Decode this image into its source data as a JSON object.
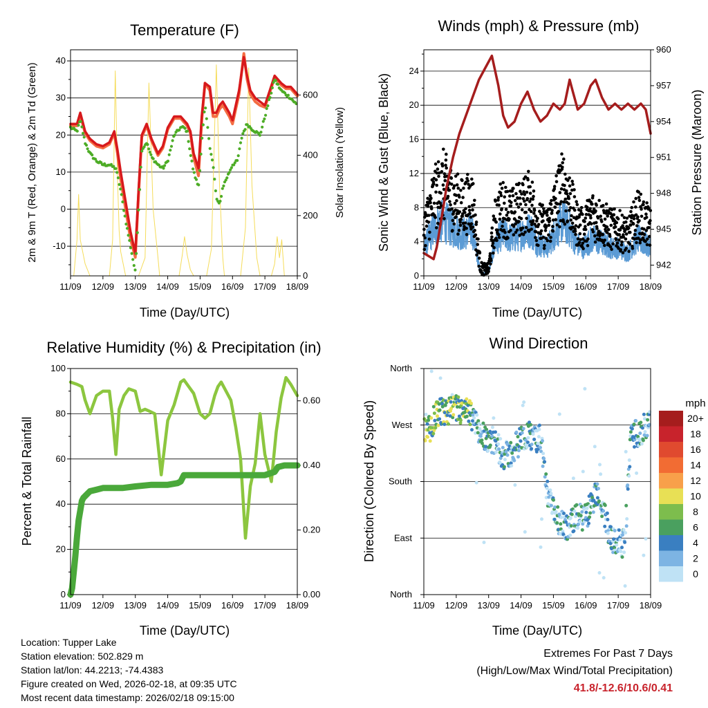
{
  "chart_data": [
    {
      "id": "temperature",
      "type": "line",
      "title": "Temperature (F)",
      "xlabel": "Time (Day/UTC)",
      "ylabel": "2m & 9m T (Red, Orange) & 2m Td (Green)",
      "y2label": "Solar Insolation (Yellow)",
      "x_ticks": [
        "11/09",
        "12/09",
        "13/09",
        "14/09",
        "15/09",
        "16/09",
        "17/09",
        "18/09"
      ],
      "xlim": [
        0,
        7
      ],
      "ylim": [
        -18,
        43
      ],
      "y_ticks": [
        -10,
        0,
        10,
        20,
        30,
        40
      ],
      "y2lim": [
        0,
        750
      ],
      "y2_ticks": [
        0,
        200,
        400,
        600
      ],
      "grid": true,
      "series": [
        {
          "name": "2m T",
          "color": "#d7191c",
          "x": [
            0,
            0.2,
            0.3,
            0.45,
            0.6,
            0.8,
            1,
            1.2,
            1.35,
            1.45,
            1.55,
            1.7,
            1.85,
            2,
            2.1,
            2.2,
            2.35,
            2.5,
            2.7,
            2.85,
            3,
            3.2,
            3.4,
            3.5,
            3.6,
            3.7,
            3.8,
            3.95,
            4.05,
            4.15,
            4.3,
            4.4,
            4.5,
            4.6,
            4.7,
            4.9,
            5,
            5.2,
            5.35,
            5.45,
            5.55,
            5.7,
            5.85,
            6,
            6.15,
            6.3,
            6.5,
            6.65,
            6.8,
            7
          ],
          "y": [
            23,
            23,
            26,
            21,
            19,
            17.5,
            17,
            18,
            21,
            16,
            10,
            2,
            -6,
            -12,
            5,
            20,
            23,
            19,
            15,
            17,
            22,
            25,
            25,
            24,
            23,
            21,
            15,
            11,
            25,
            34,
            33,
            26,
            26,
            28,
            29,
            26,
            24,
            32,
            41,
            36,
            32,
            30,
            29,
            28,
            32,
            36,
            34,
            33,
            33,
            31
          ]
        },
        {
          "name": "9m T",
          "color": "#f46d43",
          "x": [
            0,
            0.2,
            0.3,
            0.45,
            0.6,
            0.8,
            1,
            1.2,
            1.35,
            1.45,
            1.55,
            1.7,
            1.85,
            2,
            2.1,
            2.2,
            2.35,
            2.5,
            2.7,
            2.85,
            3,
            3.2,
            3.4,
            3.5,
            3.6,
            3.7,
            3.8,
            3.95,
            4.05,
            4.15,
            4.3,
            4.4,
            4.5,
            4.6,
            4.7,
            4.9,
            5,
            5.2,
            5.35,
            5.45,
            5.55,
            5.7,
            5.85,
            6,
            6.15,
            6.3,
            6.5,
            6.65,
            6.8,
            7
          ],
          "y": [
            22.5,
            22.5,
            25.5,
            20.5,
            18.5,
            17,
            16.5,
            17.5,
            20.5,
            15,
            8,
            0,
            -8,
            -13,
            4,
            19.5,
            22.5,
            18.5,
            14.5,
            16.5,
            21.5,
            24.5,
            24.5,
            23.5,
            22.5,
            20.5,
            14,
            9,
            24,
            34,
            32,
            25,
            25,
            27,
            28,
            25,
            23,
            31,
            42,
            35,
            31,
            29,
            28,
            27.5,
            31.5,
            35.5,
            33.5,
            32.5,
            32.5,
            30.5
          ]
        },
        {
          "name": "2m Td",
          "color": "#4dac26",
          "x": [
            0,
            0.2,
            0.3,
            0.45,
            0.6,
            0.8,
            1,
            1.2,
            1.4,
            1.55,
            1.7,
            1.85,
            2,
            2.1,
            2.2,
            2.35,
            2.5,
            2.7,
            2.85,
            3,
            3.2,
            3.4,
            3.5,
            3.6,
            3.7,
            3.8,
            3.95,
            4.05,
            4.15,
            4.3,
            4.4,
            4.5,
            4.6,
            4.7,
            4.9,
            5,
            5.15,
            5.3,
            5.45,
            5.55,
            5.7,
            5.85,
            6,
            6.15,
            6.3,
            6.5,
            6.65,
            6.8,
            7
          ],
          "y": [
            22,
            21,
            24,
            18,
            15,
            13,
            12,
            12,
            11,
            5,
            -3,
            -10,
            -17,
            0,
            16,
            18,
            14,
            12,
            11,
            13,
            20,
            22,
            22,
            21,
            15,
            10,
            6,
            18,
            28,
            17,
            12,
            3,
            1,
            6,
            10,
            12,
            13,
            20,
            23,
            22,
            21,
            20,
            25,
            30,
            35,
            32,
            31,
            30,
            28
          ]
        },
        {
          "name": "Solar Insolation",
          "color": "#f5dc5a",
          "axis": "y2",
          "x": [
            0,
            0.1,
            0.2,
            0.25,
            0.3,
            0.45,
            0.6,
            1.2,
            1.3,
            1.38,
            1.45,
            1.5,
            1.55,
            1.7,
            2.1,
            2.3,
            2.42,
            2.55,
            2.7,
            2.75,
            2.8,
            3.35,
            3.45,
            3.52,
            3.6,
            3.7,
            3.8,
            4.2,
            4.35,
            4.5,
            4.6,
            4.7,
            4.75,
            4.8,
            5.25,
            5.4,
            5.5,
            5.6,
            5.75,
            5.85,
            6.2,
            6.3,
            6.38,
            6.45,
            6.52,
            6.6,
            7
          ],
          "y": [
            0,
            0,
            120,
            270,
            120,
            40,
            0,
            0,
            120,
            680,
            330,
            150,
            80,
            0,
            0,
            60,
            640,
            220,
            60,
            0,
            0,
            0,
            70,
            130,
            70,
            20,
            0,
            0,
            90,
            700,
            300,
            60,
            0,
            0,
            0,
            160,
            690,
            300,
            60,
            0,
            0,
            40,
            130,
            60,
            120,
            0,
            0
          ]
        }
      ]
    },
    {
      "id": "winds",
      "type": "scatter",
      "title": "Winds (mph) & Pressure (mb)",
      "xlabel": "Time (Day/UTC)",
      "ylabel": "Sonic Wind & Gust (Blue, Black)",
      "y2label": "Station Pressure (Maroon)",
      "x_ticks": [
        "11/09",
        "12/09",
        "13/09",
        "14/09",
        "15/09",
        "16/09",
        "17/09",
        "18/09"
      ],
      "xlim": [
        0,
        7
      ],
      "ylim": [
        0,
        26.5
      ],
      "y_ticks": [
        0,
        4,
        8,
        12,
        16,
        20,
        24
      ],
      "y2lim": [
        941.1,
        960
      ],
      "y2_ticks": [
        942,
        945,
        948,
        951,
        954,
        957,
        960
      ],
      "grid": true,
      "wind_profile": {
        "x": [
          0,
          0.3,
          0.6,
          0.9,
          1.2,
          1.5,
          1.65,
          1.75,
          1.8,
          2,
          2.1,
          2.2,
          2.4,
          2.7,
          3,
          3.3,
          3.5,
          3.8,
          4.1,
          4.3,
          4.5,
          4.7,
          4.9,
          5.2,
          5.5,
          5.8,
          6,
          6.3,
          6.6,
          6.8,
          7
        ],
        "y": [
          3,
          5,
          6,
          5,
          4.5,
          5,
          2,
          0.5,
          0.3,
          0.3,
          2,
          3.5,
          4.5,
          4,
          4.5,
          5,
          3.5,
          3,
          5,
          6,
          5,
          3.5,
          3,
          4,
          3.5,
          3,
          3,
          2.5,
          4,
          3.5,
          3
        ]
      },
      "series": [
        {
          "name": "Pressure",
          "color": "#a51d1d",
          "axis": "y2",
          "x": [
            0,
            0.3,
            0.4,
            0.55,
            0.7,
            0.9,
            1.1,
            1.3,
            1.5,
            1.7,
            1.9,
            2.1,
            2.3,
            2.45,
            2.6,
            2.8,
            3.0,
            3.2,
            3.4,
            3.6,
            3.8,
            4.0,
            4.2,
            4.35,
            4.5,
            4.6,
            4.75,
            4.95,
            5.15,
            5.3,
            5.5,
            5.7,
            5.9,
            6.1,
            6.3,
            6.5,
            6.7,
            6.85,
            7
          ],
          "y": [
            943,
            942.5,
            943.5,
            946,
            948.5,
            951,
            953,
            954.5,
            956,
            957.5,
            958.5,
            959.5,
            957,
            954.5,
            953.5,
            954,
            955.5,
            956.5,
            955,
            954,
            954.5,
            955.5,
            955,
            955.5,
            957.5,
            956.5,
            955,
            955.5,
            957,
            957.5,
            956,
            955,
            955.5,
            955,
            955.5,
            955,
            955.5,
            955,
            953
          ]
        }
      ]
    },
    {
      "id": "humidity",
      "type": "line",
      "title": "Relative Humidity (%) & Precipitation (in)",
      "xlabel": "Time (Day/UTC)",
      "ylabel": "Percent & Total Rainfall",
      "x_ticks": [
        "11/09",
        "12/09",
        "13/09",
        "14/09",
        "15/09",
        "16/09",
        "17/09",
        "18/09"
      ],
      "xlim": [
        0,
        7
      ],
      "ylim": [
        0,
        100
      ],
      "y_ticks": [
        0,
        20,
        40,
        60,
        80,
        100
      ],
      "y2lim": [
        0,
        0.7
      ],
      "y2_ticks": [
        "0.00",
        "0.20",
        "0.40",
        "0.60"
      ],
      "grid": true,
      "series": [
        {
          "name": "Relative Humidity",
          "color": "#8cc63f",
          "x": [
            0,
            0.2,
            0.35,
            0.45,
            0.6,
            0.8,
            1,
            1.2,
            1.3,
            1.4,
            1.5,
            1.65,
            1.8,
            2,
            2.15,
            2.3,
            2.45,
            2.6,
            2.8,
            3,
            3.2,
            3.4,
            3.5,
            3.65,
            3.8,
            4,
            4.15,
            4.3,
            4.45,
            4.55,
            4.65,
            4.8,
            4.95,
            5.1,
            5.25,
            5.4,
            5.55,
            5.7,
            5.85,
            6,
            6.2,
            6.35,
            6.5,
            6.65,
            6.8,
            7
          ],
          "y": [
            94,
            93,
            92,
            86,
            80,
            88,
            90,
            90,
            78,
            62,
            82,
            88,
            91,
            90,
            81,
            82,
            81,
            80,
            53,
            77,
            84,
            94,
            95,
            92,
            89,
            80,
            78,
            80,
            88,
            92,
            94,
            90,
            86,
            74,
            60,
            25,
            48,
            58,
            80,
            62,
            50,
            72,
            87,
            96,
            93,
            88
          ]
        },
        {
          "name": "Total Precipitation",
          "color": "#4aa83a",
          "axis": "y2",
          "x": [
            0,
            0.05,
            0.1,
            0.15,
            0.2,
            0.25,
            0.3,
            0.35,
            0.4,
            0.5,
            0.6,
            0.8,
            1,
            1.3,
            1.6,
            2,
            2.5,
            3,
            3.3,
            3.4,
            3.5,
            4,
            4.5,
            5,
            5.5,
            6,
            6.3,
            6.4,
            6.6,
            7
          ],
          "y": [
            0,
            0.02,
            0.07,
            0.12,
            0.18,
            0.23,
            0.26,
            0.29,
            0.3,
            0.31,
            0.32,
            0.325,
            0.33,
            0.33,
            0.33,
            0.335,
            0.34,
            0.34,
            0.345,
            0.35,
            0.37,
            0.37,
            0.37,
            0.37,
            0.37,
            0.37,
            0.38,
            0.395,
            0.4,
            0.4
          ]
        }
      ]
    },
    {
      "id": "direction",
      "type": "scatter",
      "title": "Wind Direction",
      "xlabel": "Time (Day/UTC)",
      "ylabel": "Direction (Colored By Speed)",
      "x_ticks": [
        "11/09",
        "12/09",
        "13/09",
        "14/09",
        "15/09",
        "16/09",
        "17/09",
        "18/09"
      ],
      "xlim": [
        0,
        7
      ],
      "ylim": [
        0,
        360
      ],
      "y_ticks": [
        "North",
        "East",
        "South",
        "West",
        "North"
      ],
      "grid": true,
      "legend": {
        "title": "mph",
        "labels": [
          "20+",
          "18",
          "16",
          "14",
          "12",
          "10",
          "8",
          "6",
          "4",
          "2",
          "0"
        ],
        "colors": [
          "#a51d1d",
          "#c8232c",
          "#e04a2f",
          "#f26c33",
          "#f8a04a",
          "#e8e055",
          "#7dbd4d",
          "#4aa05f",
          "#3a7fc1",
          "#7db4e3",
          "#bfe2f5"
        ],
        "placement": "right"
      },
      "direction_profile": {
        "x": [
          0,
          0.2,
          0.4,
          0.7,
          1,
          1.2,
          1.4,
          1.6,
          1.8,
          2,
          2.2,
          2.5,
          2.7,
          2.9,
          3,
          3.2,
          3.4,
          3.6,
          3.8,
          4,
          4.2,
          4.4,
          4.6,
          4.8,
          5,
          5.2,
          5.4,
          5.6,
          5.8,
          6,
          6.2,
          6.4,
          6.6,
          6.8,
          7
        ],
        "y": [
          265,
          265,
          290,
          290,
          295,
          290,
          290,
          270,
          255,
          250,
          240,
          220,
          225,
          240,
          250,
          255,
          245,
          250,
          165,
          130,
          115,
          105,
          115,
          125,
          120,
          150,
          165,
          120,
          90,
          85,
          80,
          260,
          255,
          265,
          285
        ]
      }
    }
  ],
  "info": {
    "location": "Location: Tupper Lake",
    "elevation": "Station elevation: 502.829 m",
    "latlon": "Station lat/lon: 44.2213; -74.4383",
    "created": "Figure created on Wed, 2026-02-18, at 09:35 UTC",
    "timestamp": "Most recent data timestamp: 2026/02/18 09:15:00"
  },
  "extremes": {
    "title": "Extremes For Past 7 Days",
    "subtitle": "(High/Low/Max Wind/Total Precipitation)",
    "values": "41.8/-12.6/10.6/0.41"
  }
}
